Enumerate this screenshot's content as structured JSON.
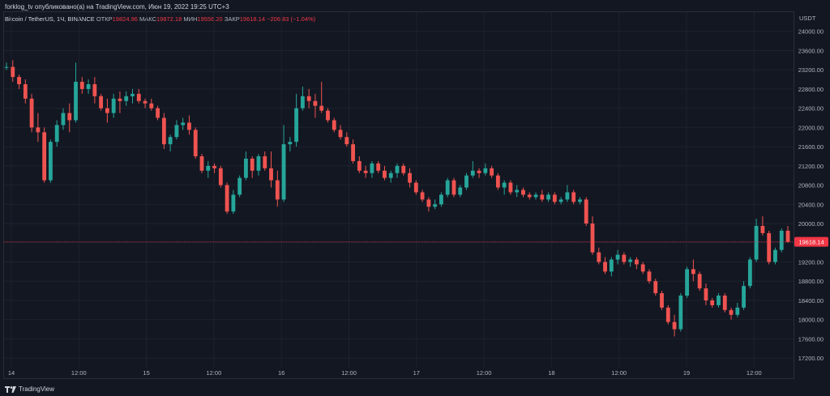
{
  "header": {
    "published": "forklog_tv опубликовано(а) на TradingView.com, Июн 19, 2022 19:25 UTC+3",
    "symbol": "Bitcoin / TetherUS, 1Ч, BINANCE",
    "open_label": "ОТКР",
    "open_value": "19824.96",
    "high_label": "МАКС",
    "high_value": "19872.18",
    "low_label": "МИН",
    "low_value": "19556.20",
    "close_label": "ЗАКР",
    "close_value": "19618.14",
    "change_value": "−206.83 (−1.04%)"
  },
  "footer": {
    "brand": "TradingView",
    "logo_icon": "tradingview-logo-icon"
  },
  "colors": {
    "up": "#26a69a",
    "down": "#ef5350",
    "grid": "#1e222d",
    "text": "#b2b5be",
    "price_line": "#f23645"
  },
  "chart_data": {
    "type": "candlestick",
    "currency": "USDT",
    "ylim": [
      17000,
      24400
    ],
    "y_ticks": [
      "24000.00",
      "23600.00",
      "23200.00",
      "22800.00",
      "22400.00",
      "22000.00",
      "21600.00",
      "21200.00",
      "20800.00",
      "20400.00",
      "20000.00",
      "19600.00",
      "19200.00",
      "18800.00",
      "18400.00",
      "18000.00",
      "17600.00",
      "17200.00"
    ],
    "x_ticks": [
      "14",
      "12:00",
      "15",
      "12:00",
      "16",
      "12:00",
      "17",
      "12:00",
      "18",
      "12:00",
      "19",
      "12:00"
    ],
    "last_price": "19618.14",
    "candles": [
      [
        23260,
        23350,
        23200,
        23260
      ],
      [
        23260,
        23400,
        22950,
        23050
      ],
      [
        23050,
        23100,
        22800,
        22900
      ],
      [
        22900,
        23000,
        22500,
        22600
      ],
      [
        22600,
        22700,
        21900,
        22000
      ],
      [
        22000,
        22300,
        21700,
        21900
      ],
      [
        21900,
        22000,
        20850,
        20900
      ],
      [
        20900,
        21750,
        20850,
        21700
      ],
      [
        21700,
        22150,
        21600,
        22050
      ],
      [
        22050,
        22400,
        21950,
        22300
      ],
      [
        22300,
        22500,
        21900,
        22150
      ],
      [
        22150,
        23350,
        22100,
        22950
      ],
      [
        22950,
        23050,
        22700,
        22800
      ],
      [
        22800,
        23000,
        22700,
        22900
      ],
      [
        22900,
        23050,
        22500,
        22650
      ],
      [
        22650,
        22700,
        22350,
        22400
      ],
      [
        22400,
        22600,
        22100,
        22300
      ],
      [
        22300,
        22700,
        22200,
        22600
      ],
      [
        22600,
        22750,
        22300,
        22550
      ],
      [
        22550,
        22750,
        22450,
        22650
      ],
      [
        22650,
        22800,
        22500,
        22700
      ],
      [
        22700,
        22800,
        22500,
        22550
      ],
      [
        22550,
        22600,
        22400,
        22500
      ],
      [
        22500,
        22600,
        22350,
        22400
      ],
      [
        22400,
        22450,
        22150,
        22200
      ],
      [
        22200,
        22300,
        21550,
        21650
      ],
      [
        21650,
        21850,
        21500,
        21800
      ],
      [
        21800,
        22150,
        21750,
        22050
      ],
      [
        22050,
        22200,
        21950,
        22100
      ],
      [
        22100,
        22250,
        21850,
        21950
      ],
      [
        21950,
        22000,
        21350,
        21400
      ],
      [
        21400,
        21450,
        21050,
        21100
      ],
      [
        21100,
        21300,
        20950,
        21200
      ],
      [
        21200,
        21250,
        21050,
        21150
      ],
      [
        21150,
        21200,
        20750,
        20800
      ],
      [
        20800,
        20850,
        20200,
        20250
      ],
      [
        20250,
        20700,
        20200,
        20600
      ],
      [
        20600,
        21000,
        20550,
        20950
      ],
      [
        20950,
        21500,
        20900,
        21350
      ],
      [
        21350,
        21400,
        20950,
        21100
      ],
      [
        21100,
        21450,
        21000,
        21400
      ],
      [
        21400,
        21500,
        21100,
        21150
      ],
      [
        21150,
        21500,
        20750,
        20900
      ],
      [
        20900,
        21100,
        20350,
        20500
      ],
      [
        20500,
        22050,
        20450,
        21650
      ],
      [
        21650,
        21800,
        21500,
        21700
      ],
      [
        21700,
        22700,
        21600,
        22400
      ],
      [
        22400,
        22850,
        22350,
        22650
      ],
      [
        22650,
        22800,
        22400,
        22550
      ],
      [
        22550,
        22700,
        22200,
        22450
      ],
      [
        22450,
        22950,
        22300,
        22350
      ],
      [
        22350,
        22400,
        22100,
        22150
      ],
      [
        22150,
        22200,
        21900,
        21950
      ],
      [
        21950,
        22050,
        21750,
        21800
      ],
      [
        21800,
        21900,
        21600,
        21650
      ],
      [
        21650,
        21750,
        21250,
        21300
      ],
      [
        21300,
        21400,
        21050,
        21100
      ],
      [
        21100,
        21200,
        20950,
        21050
      ],
      [
        21050,
        21300,
        20950,
        21250
      ],
      [
        21250,
        21300,
        21050,
        21100
      ],
      [
        21100,
        21200,
        20900,
        20950
      ],
      [
        20950,
        21100,
        20850,
        21050
      ],
      [
        21050,
        21250,
        20950,
        21200
      ],
      [
        21200,
        21250,
        21000,
        21050
      ],
      [
        21050,
        21150,
        20750,
        20850
      ],
      [
        20850,
        20900,
        20600,
        20650
      ],
      [
        20650,
        20700,
        20450,
        20500
      ],
      [
        20500,
        20550,
        20250,
        20350
      ],
      [
        20350,
        20500,
        20300,
        20400
      ],
      [
        20400,
        20650,
        20350,
        20600
      ],
      [
        20600,
        20950,
        20550,
        20900
      ],
      [
        20900,
        20950,
        20550,
        20600
      ],
      [
        20600,
        20800,
        20550,
        20750
      ],
      [
        20750,
        21050,
        20700,
        21000
      ],
      [
        21000,
        21300,
        20950,
        21100
      ],
      [
        21100,
        21150,
        20950,
        21050
      ],
      [
        21050,
        21250,
        21000,
        21150
      ],
      [
        21150,
        21200,
        20950,
        21000
      ],
      [
        21000,
        21050,
        20700,
        20750
      ],
      [
        20750,
        20900,
        20600,
        20850
      ],
      [
        20850,
        20900,
        20600,
        20650
      ],
      [
        20650,
        20800,
        20550,
        20700
      ],
      [
        20700,
        20750,
        20550,
        20600
      ],
      [
        20600,
        20650,
        20500,
        20550
      ],
      [
        20550,
        20650,
        20500,
        20600
      ],
      [
        20600,
        20700,
        20450,
        20500
      ],
      [
        20500,
        20650,
        20450,
        20600
      ],
      [
        20600,
        20650,
        20400,
        20450
      ],
      [
        20450,
        20550,
        20400,
        20500
      ],
      [
        20500,
        20800,
        20450,
        20650
      ],
      [
        20650,
        20700,
        20400,
        20450
      ],
      [
        20450,
        20550,
        20400,
        20500
      ],
      [
        20500,
        20550,
        19950,
        20000
      ],
      [
        20000,
        20150,
        19350,
        19400
      ],
      [
        19400,
        19500,
        19150,
        19200
      ],
      [
        19200,
        19300,
        18950,
        19000
      ],
      [
        19000,
        19300,
        18900,
        19250
      ],
      [
        19250,
        19450,
        19150,
        19350
      ],
      [
        19350,
        19400,
        19150,
        19200
      ],
      [
        19200,
        19300,
        19100,
        19250
      ],
      [
        19250,
        19300,
        19050,
        19150
      ],
      [
        19150,
        19200,
        18950,
        19000
      ],
      [
        19000,
        19050,
        18750,
        18800
      ],
      [
        18800,
        18850,
        18500,
        18550
      ],
      [
        18550,
        18600,
        18200,
        18250
      ],
      [
        18250,
        18300,
        17900,
        17950
      ],
      [
        17950,
        18100,
        17650,
        17800
      ],
      [
        17800,
        18550,
        17750,
        18500
      ],
      [
        18500,
        19100,
        18450,
        19050
      ],
      [
        19050,
        19250,
        18800,
        18950
      ],
      [
        18950,
        19000,
        18600,
        18650
      ],
      [
        18650,
        18750,
        18300,
        18400
      ],
      [
        18400,
        18450,
        18250,
        18300
      ],
      [
        18300,
        18550,
        18250,
        18500
      ],
      [
        18500,
        18550,
        18150,
        18200
      ],
      [
        18200,
        18250,
        18000,
        18100
      ],
      [
        18100,
        18350,
        18050,
        18250
      ],
      [
        18250,
        18800,
        18200,
        18700
      ],
      [
        18700,
        19300,
        18650,
        19250
      ],
      [
        19250,
        20100,
        19200,
        19950
      ],
      [
        19950,
        20150,
        19750,
        19800
      ],
      [
        19800,
        19850,
        19150,
        19200
      ],
      [
        19200,
        19500,
        19150,
        19450
      ],
      [
        19450,
        19900,
        19400,
        19850
      ],
      [
        19850,
        19950,
        19600,
        19618
      ]
    ]
  }
}
